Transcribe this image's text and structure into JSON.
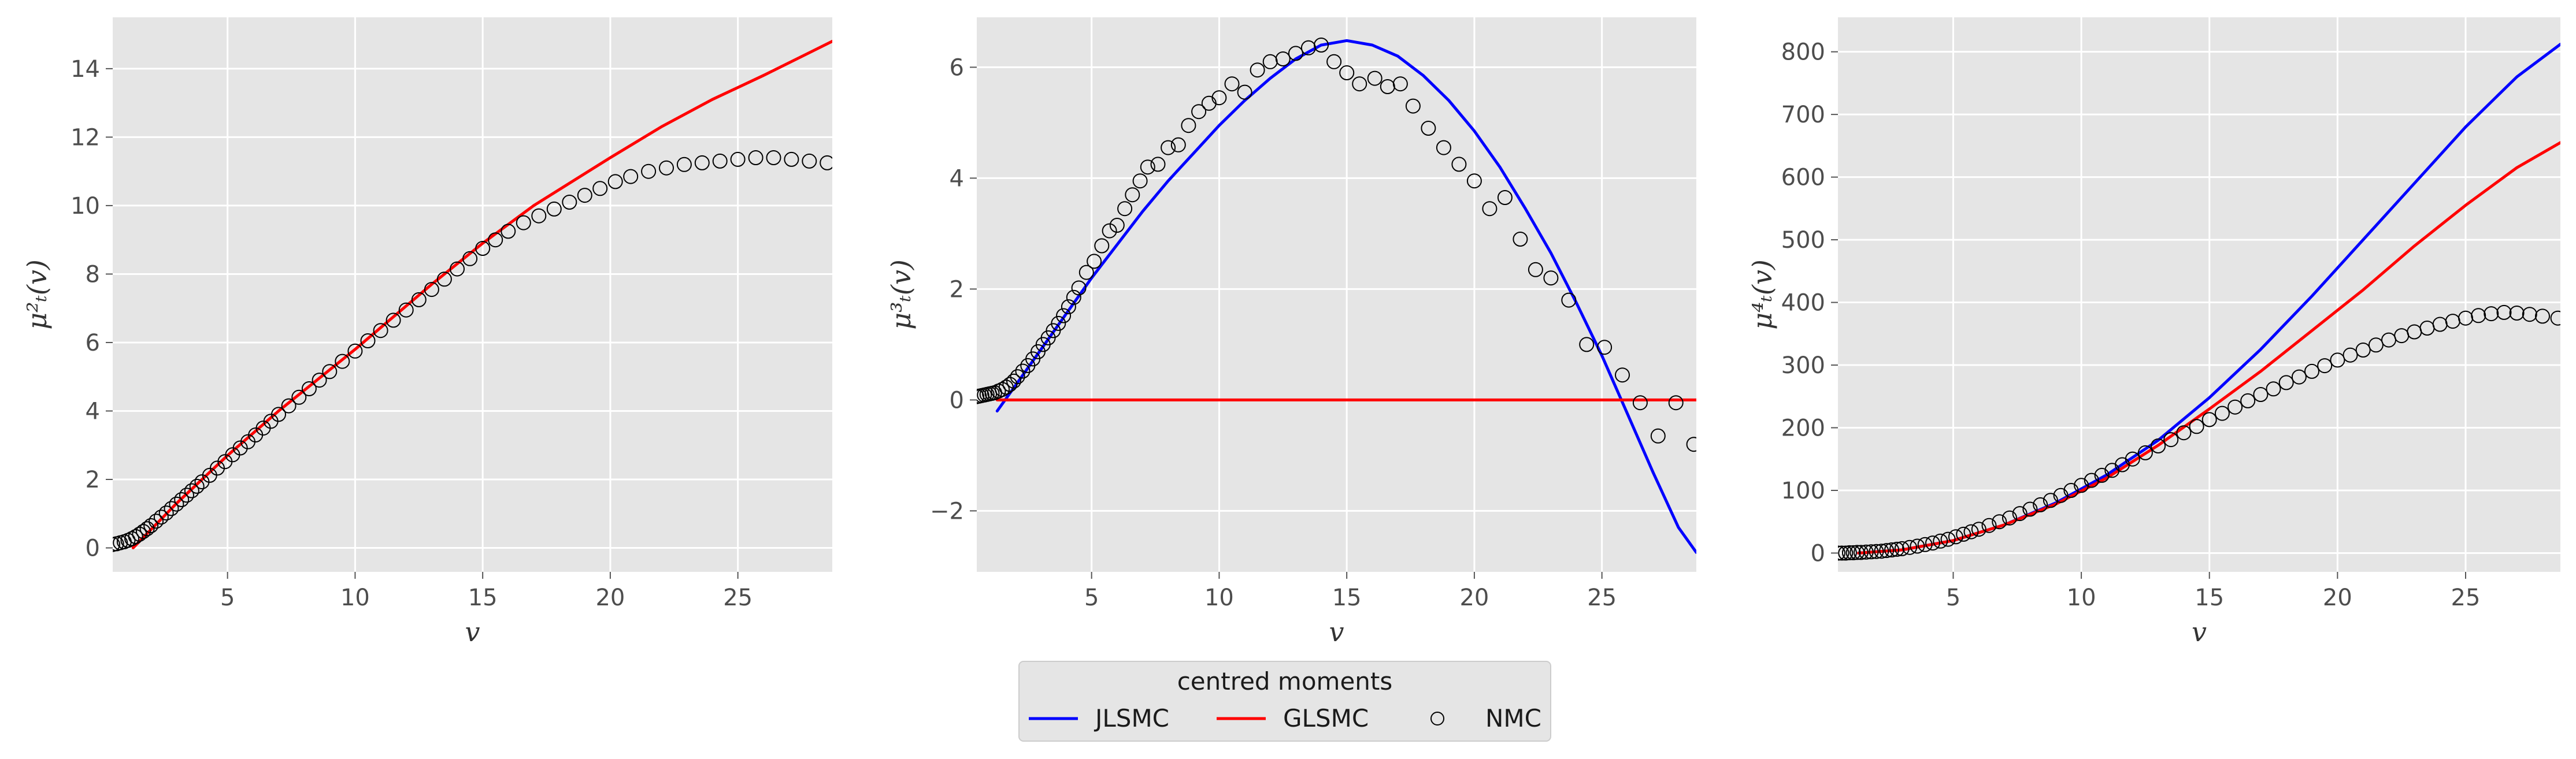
{
  "chart_data": {
    "type": "line",
    "legend": {
      "title": "centred moments",
      "placement": "bottom-center",
      "entries": [
        {
          "name": "JLSMC",
          "color": "#0000ff",
          "style": "line"
        },
        {
          "name": "GLSMC",
          "color": "#ff0000",
          "style": "line"
        },
        {
          "name": "NMC",
          "color": "#000000",
          "style": "marker-open-circle"
        }
      ]
    },
    "panels": [
      {
        "id": "panel-1",
        "xlabel": "v",
        "ylabel": "μ²ₜ(v)",
        "xlim": [
          0.5,
          28.7
        ],
        "ylim": [
          -0.7,
          15.5
        ],
        "xticks": [
          5,
          10,
          15,
          20,
          25
        ],
        "xtick_labels": [
          "5",
          "10",
          "15",
          "20",
          "25"
        ],
        "yticks": [
          0,
          2,
          4,
          6,
          8,
          10,
          12,
          14
        ],
        "ytick_labels": [
          "0",
          "2",
          "4",
          "6",
          "8",
          "10",
          "12",
          "14"
        ],
        "grid": true,
        "series": [
          {
            "name": "GLSMC",
            "color": "#ff0000",
            "style": "line",
            "x": [
              1.3,
              3,
              5,
              7,
              10,
              13,
              15,
              17,
              20,
              22,
              24,
              26,
              28.7
            ],
            "y": [
              0.0,
              1.3,
              2.7,
              4.0,
              5.8,
              7.7,
              8.9,
              10.0,
              11.4,
              12.3,
              13.1,
              13.8,
              14.8
            ]
          }
        ],
        "scatter": {
          "name": "NMC",
          "x": [
            0.5,
            0.65,
            0.8,
            0.95,
            1.1,
            1.25,
            1.4,
            1.55,
            1.7,
            1.85,
            2.0,
            2.2,
            2.4,
            2.6,
            2.8,
            3.0,
            3.2,
            3.4,
            3.6,
            3.8,
            4.0,
            4.3,
            4.6,
            4.9,
            5.2,
            5.5,
            5.8,
            6.1,
            6.4,
            6.7,
            7.0,
            7.4,
            7.8,
            8.2,
            8.6,
            9.0,
            9.5,
            10.0,
            10.5,
            11.0,
            11.5,
            12.0,
            12.5,
            13.0,
            13.5,
            14.0,
            14.5,
            15.0,
            15.5,
            16.0,
            16.6,
            17.2,
            17.8,
            18.4,
            19.0,
            19.6,
            20.2,
            20.8,
            21.5,
            22.2,
            22.9,
            23.6,
            24.3,
            25.0,
            25.7,
            26.4,
            27.1,
            27.8,
            28.5
          ],
          "y": [
            0.1,
            0.12,
            0.15,
            0.18,
            0.22,
            0.27,
            0.33,
            0.4,
            0.48,
            0.56,
            0.65,
            0.78,
            0.9,
            1.02,
            1.15,
            1.28,
            1.41,
            1.54,
            1.67,
            1.8,
            1.93,
            2.12,
            2.33,
            2.52,
            2.72,
            2.92,
            3.1,
            3.3,
            3.5,
            3.7,
            3.9,
            4.15,
            4.4,
            4.65,
            4.9,
            5.15,
            5.45,
            5.75,
            6.05,
            6.35,
            6.65,
            6.95,
            7.25,
            7.55,
            7.85,
            8.15,
            8.45,
            8.75,
            9.0,
            9.25,
            9.5,
            9.7,
            9.9,
            10.1,
            10.3,
            10.5,
            10.7,
            10.85,
            11.0,
            11.1,
            11.2,
            11.25,
            11.3,
            11.35,
            11.4,
            11.4,
            11.35,
            11.3,
            11.25
          ]
        }
      },
      {
        "id": "panel-2",
        "xlabel": "v",
        "ylabel": "μ³ₜ(v)",
        "xlim": [
          0.5,
          28.7
        ],
        "ylim": [
          -3.1,
          6.9
        ],
        "xticks": [
          5,
          10,
          15,
          20,
          25
        ],
        "xtick_labels": [
          "5",
          "10",
          "15",
          "20",
          "25"
        ],
        "yticks": [
          -2,
          0,
          2,
          4,
          6
        ],
        "ytick_labels": [
          "−2",
          "0",
          "2",
          "4",
          "6"
        ],
        "grid": true,
        "series": [
          {
            "name": "JLSMC",
            "color": "#0000ff",
            "style": "line",
            "x": [
              1.3,
              2,
              3,
              4,
              5,
              6,
              7,
              8,
              9,
              10,
              11,
              12,
              13,
              14,
              15,
              16,
              17,
              18,
              19,
              20,
              21,
              22,
              23,
              24,
              25,
              26,
              27,
              28,
              28.7
            ],
            "y": [
              -0.2,
              0.25,
              0.9,
              1.55,
              2.2,
              2.8,
              3.4,
              3.95,
              4.45,
              4.95,
              5.4,
              5.8,
              6.15,
              6.4,
              6.48,
              6.4,
              6.2,
              5.85,
              5.4,
              4.85,
              4.2,
              3.45,
              2.65,
              1.75,
              0.8,
              -0.25,
              -1.3,
              -2.3,
              -2.75
            ]
          },
          {
            "name": "GLSMC",
            "color": "#ff0000",
            "style": "line",
            "x": [
              1.3,
              28.7
            ],
            "y": [
              0.0,
              0.0
            ]
          }
        ],
        "scatter": {
          "name": "NMC",
          "x": [
            0.5,
            0.6,
            0.7,
            0.8,
            0.9,
            1.0,
            1.1,
            1.2,
            1.35,
            1.5,
            1.65,
            1.8,
            1.95,
            2.1,
            2.3,
            2.5,
            2.7,
            2.9,
            3.1,
            3.3,
            3.5,
            3.7,
            3.9,
            4.1,
            4.3,
            4.5,
            4.8,
            5.1,
            5.4,
            5.7,
            6.0,
            6.3,
            6.6,
            6.9,
            7.2,
            7.6,
            8.0,
            8.4,
            8.8,
            9.2,
            9.6,
            10.0,
            10.5,
            11.0,
            11.5,
            12.0,
            12.5,
            13.0,
            13.5,
            14.0,
            14.5,
            15.0,
            15.5,
            16.1,
            16.6,
            17.1,
            17.6,
            18.2,
            18.8,
            19.4,
            20.0,
            20.6,
            21.2,
            21.8,
            22.4,
            23.0,
            23.7,
            24.4,
            25.1,
            25.8,
            26.5,
            27.2,
            27.9,
            28.6
          ],
          "y": [
            0.06,
            0.07,
            0.08,
            0.09,
            0.1,
            0.11,
            0.12,
            0.13,
            0.16,
            0.19,
            0.23,
            0.28,
            0.34,
            0.42,
            0.52,
            0.62,
            0.74,
            0.87,
            1.0,
            1.12,
            1.25,
            1.38,
            1.52,
            1.68,
            1.85,
            2.02,
            2.3,
            2.5,
            2.78,
            3.05,
            3.15,
            3.45,
            3.7,
            3.95,
            4.2,
            4.25,
            4.55,
            4.6,
            4.95,
            5.2,
            5.35,
            5.45,
            5.7,
            5.55,
            5.95,
            6.1,
            6.15,
            6.25,
            6.35,
            6.4,
            6.1,
            5.9,
            5.7,
            5.8,
            5.65,
            5.7,
            5.3,
            4.9,
            4.55,
            4.25,
            3.95,
            3.45,
            3.65,
            2.9,
            2.35,
            2.2,
            1.8,
            1.0,
            0.95,
            0.45,
            -0.05,
            -0.65,
            -0.05,
            -0.8
          ]
        }
      },
      {
        "id": "panel-3",
        "xlabel": "v",
        "ylabel": "μ⁴ₜ(v)",
        "xlim": [
          0.5,
          28.7
        ],
        "ylim": [
          -30,
          855
        ],
        "xticks": [
          5,
          10,
          15,
          20,
          25
        ],
        "xtick_labels": [
          "5",
          "10",
          "15",
          "20",
          "25"
        ],
        "yticks": [
          0,
          100,
          200,
          300,
          400,
          500,
          600,
          700,
          800
        ],
        "ytick_labels": [
          "0",
          "100",
          "200",
          "300",
          "400",
          "500",
          "600",
          "700",
          "800"
        ],
        "grid": true,
        "series": [
          {
            "name": "JLSMC",
            "color": "#0000ff",
            "style": "line",
            "x": [
              1.3,
              3,
              5,
              7,
              9,
              11,
              13,
              15,
              17,
              19,
              21,
              23,
              25,
              27,
              28.7
            ],
            "y": [
              0,
              5,
              20,
              45,
              80,
              125,
              180,
              248,
              325,
              410,
              500,
              590,
              680,
              760,
              812
            ]
          },
          {
            "name": "GLSMC",
            "color": "#ff0000",
            "style": "line",
            "x": [
              1.3,
              3,
              5,
              7,
              9,
              11,
              13,
              15,
              17,
              19,
              21,
              23,
              25,
              27,
              28.7
            ],
            "y": [
              0,
              5,
              20,
              45,
              78,
              120,
              172,
              230,
              290,
              355,
              420,
              490,
              555,
              615,
              655
            ]
          }
        ],
        "scatter": {
          "name": "NMC",
          "x": [
            0.5,
            0.65,
            0.8,
            0.95,
            1.1,
            1.25,
            1.4,
            1.6,
            1.8,
            2.0,
            2.2,
            2.4,
            2.6,
            2.8,
            3.0,
            3.3,
            3.6,
            3.9,
            4.2,
            4.5,
            4.8,
            5.1,
            5.4,
            5.7,
            6.0,
            6.4,
            6.8,
            7.2,
            7.6,
            8.0,
            8.4,
            8.8,
            9.2,
            9.6,
            10.0,
            10.4,
            10.8,
            11.2,
            11.6,
            12.0,
            12.5,
            13.0,
            13.5,
            14.0,
            14.5,
            15.0,
            15.5,
            16.0,
            16.5,
            17.0,
            17.5,
            18.0,
            18.5,
            19.0,
            19.5,
            20.0,
            20.5,
            21.0,
            21.5,
            22.0,
            22.5,
            23.0,
            23.5,
            24.0,
            24.5,
            25.0,
            25.5,
            26.0,
            26.5,
            27.0,
            27.5,
            28.0,
            28.6
          ],
          "y": [
            0,
            0,
            0,
            0.5,
            0.5,
            1,
            1,
            1.5,
            2,
            2.5,
            3,
            4,
            5,
            6,
            7,
            9,
            11,
            13.5,
            16,
            19,
            22,
            26,
            30,
            34,
            38,
            44,
            50,
            56,
            63,
            70,
            77,
            84,
            92,
            100,
            108,
            116,
            124,
            132,
            141,
            150,
            160,
            171,
            181,
            192,
            202,
            213,
            223,
            233,
            243,
            253,
            262,
            272,
            281,
            290,
            299,
            308,
            316,
            324,
            332,
            340,
            347,
            353,
            359,
            365,
            370,
            375,
            379,
            382,
            384,
            383,
            381,
            378,
            375
          ]
        }
      }
    ]
  }
}
